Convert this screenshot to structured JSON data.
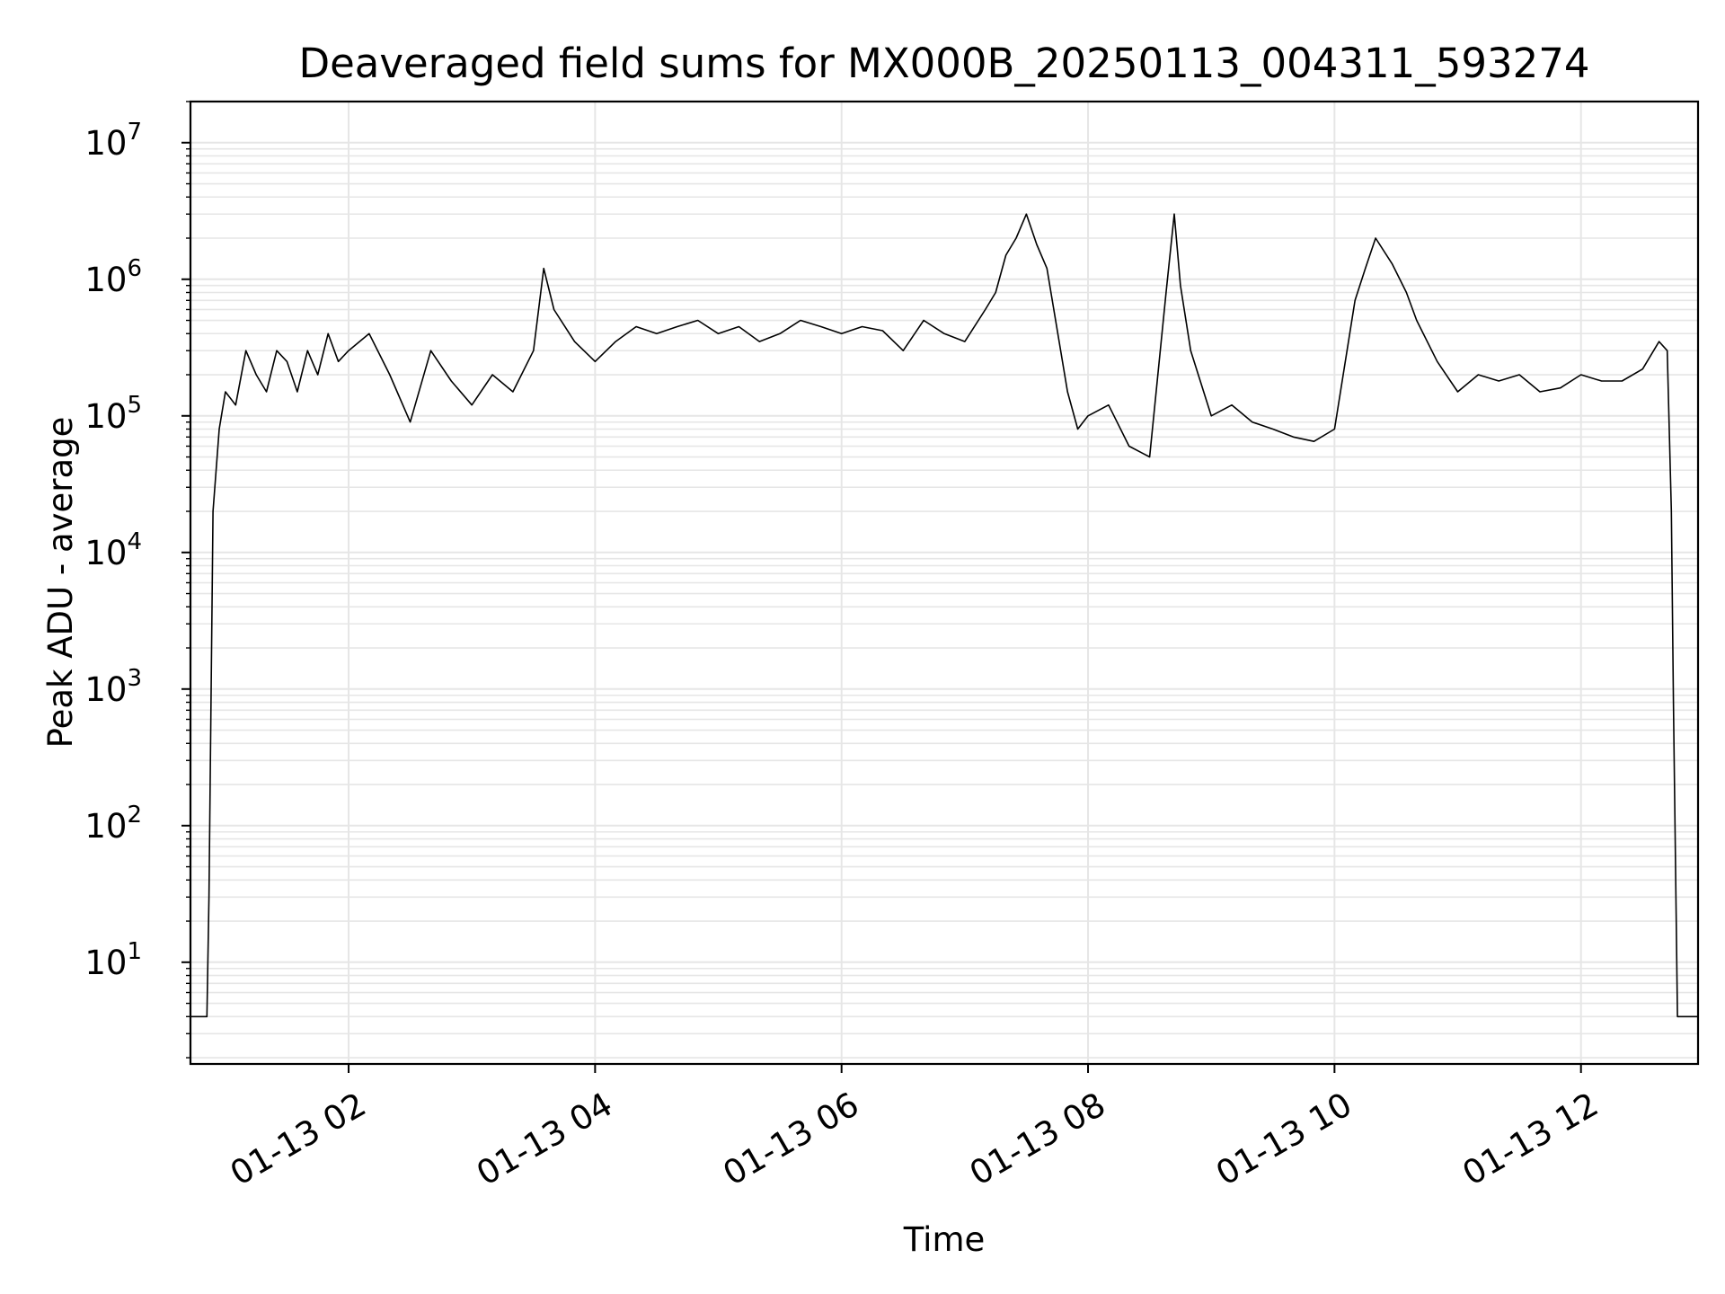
{
  "chart_data": {
    "type": "line",
    "title": "Deaveraged field sums for MX000B_20250113_004311_593274",
    "xlabel": "Time",
    "ylabel": "Peak ADU - average",
    "yscale": "log",
    "ylim": [
      1.8,
      20000000
    ],
    "xlim": [
      "2025-01-13 00:43",
      "2025-01-13 12:57"
    ],
    "grid": true,
    "legend": "none",
    "line_color": "#000000",
    "grid_color": "#e6e6e6",
    "x_tick_labels": [
      "01-13 02",
      "01-13 04",
      "01-13 06",
      "01-13 08",
      "01-13 10",
      "01-13 12"
    ],
    "x_tick_values": [
      "2025-01-13 02:00",
      "2025-01-13 04:00",
      "2025-01-13 06:00",
      "2025-01-13 08:00",
      "2025-01-13 10:00",
      "2025-01-13 12:00"
    ],
    "y_ticks": [
      {
        "value": 10,
        "base": "10",
        "exp": "1"
      },
      {
        "value": 100,
        "base": "10",
        "exp": "2"
      },
      {
        "value": 1000,
        "base": "10",
        "exp": "3"
      },
      {
        "value": 10000,
        "base": "10",
        "exp": "4"
      },
      {
        "value": 100000,
        "base": "10",
        "exp": "5"
      },
      {
        "value": 1000000,
        "base": "10",
        "exp": "6"
      },
      {
        "value": 10000000,
        "base": "10",
        "exp": "7"
      }
    ],
    "series": [
      {
        "x": [
          "2025-01-13 00:43",
          "2025-01-13 00:51",
          "2025-01-13 00:52",
          "2025-01-13 00:54",
          "2025-01-13 00:57",
          "2025-01-13 01:00",
          "2025-01-13 01:05",
          "2025-01-13 01:10",
          "2025-01-13 01:15",
          "2025-01-13 01:20",
          "2025-01-13 01:25",
          "2025-01-13 01:30",
          "2025-01-13 01:35",
          "2025-01-13 01:40",
          "2025-01-13 01:45",
          "2025-01-13 01:50",
          "2025-01-13 01:55",
          "2025-01-13 02:00",
          "2025-01-13 02:10",
          "2025-01-13 02:20",
          "2025-01-13 02:30",
          "2025-01-13 02:40",
          "2025-01-13 02:50",
          "2025-01-13 03:00",
          "2025-01-13 03:10",
          "2025-01-13 03:20",
          "2025-01-13 03:30",
          "2025-01-13 03:35",
          "2025-01-13 03:40",
          "2025-01-13 03:50",
          "2025-01-13 04:00",
          "2025-01-13 04:10",
          "2025-01-13 04:20",
          "2025-01-13 04:30",
          "2025-01-13 04:40",
          "2025-01-13 04:50",
          "2025-01-13 05:00",
          "2025-01-13 05:10",
          "2025-01-13 05:20",
          "2025-01-13 05:30",
          "2025-01-13 05:40",
          "2025-01-13 05:50",
          "2025-01-13 06:00",
          "2025-01-13 06:10",
          "2025-01-13 06:20",
          "2025-01-13 06:30",
          "2025-01-13 06:40",
          "2025-01-13 06:50",
          "2025-01-13 07:00",
          "2025-01-13 07:10",
          "2025-01-13 07:15",
          "2025-01-13 07:20",
          "2025-01-13 07:25",
          "2025-01-13 07:30",
          "2025-01-13 07:35",
          "2025-01-13 07:40",
          "2025-01-13 07:50",
          "2025-01-13 07:55",
          "2025-01-13 08:00",
          "2025-01-13 08:10",
          "2025-01-13 08:20",
          "2025-01-13 08:30",
          "2025-01-13 08:38",
          "2025-01-13 08:42",
          "2025-01-13 08:45",
          "2025-01-13 08:50",
          "2025-01-13 09:00",
          "2025-01-13 09:10",
          "2025-01-13 09:20",
          "2025-01-13 09:30",
          "2025-01-13 09:40",
          "2025-01-13 09:50",
          "2025-01-13 10:00",
          "2025-01-13 10:10",
          "2025-01-13 10:15",
          "2025-01-13 10:20",
          "2025-01-13 10:28",
          "2025-01-13 10:35",
          "2025-01-13 10:40",
          "2025-01-13 10:50",
          "2025-01-13 11:00",
          "2025-01-13 11:10",
          "2025-01-13 11:20",
          "2025-01-13 11:30",
          "2025-01-13 11:40",
          "2025-01-13 11:50",
          "2025-01-13 12:00",
          "2025-01-13 12:10",
          "2025-01-13 12:20",
          "2025-01-13 12:30",
          "2025-01-13 12:38",
          "2025-01-13 12:42",
          "2025-01-13 12:44",
          "2025-01-13 12:45",
          "2025-01-13 12:47",
          "2025-01-13 12:57"
        ],
        "y": [
          4,
          4,
          30,
          20000,
          80000,
          150000,
          120000,
          300000,
          200000,
          150000,
          300000,
          250000,
          150000,
          300000,
          200000,
          400000,
          250000,
          300000,
          400000,
          200000,
          90000,
          300000,
          180000,
          120000,
          200000,
          150000,
          300000,
          1200000,
          600000,
          350000,
          250000,
          350000,
          450000,
          400000,
          450000,
          500000,
          400000,
          450000,
          350000,
          400000,
          500000,
          450000,
          400000,
          450000,
          420000,
          300000,
          500000,
          400000,
          350000,
          600000,
          800000,
          1500000,
          2000000,
          3000000,
          1800000,
          1200000,
          150000,
          80000,
          100000,
          120000,
          60000,
          50000,
          800000,
          3000000,
          900000,
          300000,
          100000,
          120000,
          90000,
          80000,
          70000,
          65000,
          80000,
          700000,
          1200000,
          2000000,
          1300000,
          800000,
          500000,
          250000,
          150000,
          200000,
          180000,
          200000,
          150000,
          160000,
          200000,
          180000,
          180000,
          220000,
          350000,
          300000,
          20000,
          800,
          4,
          4
        ]
      }
    ]
  }
}
